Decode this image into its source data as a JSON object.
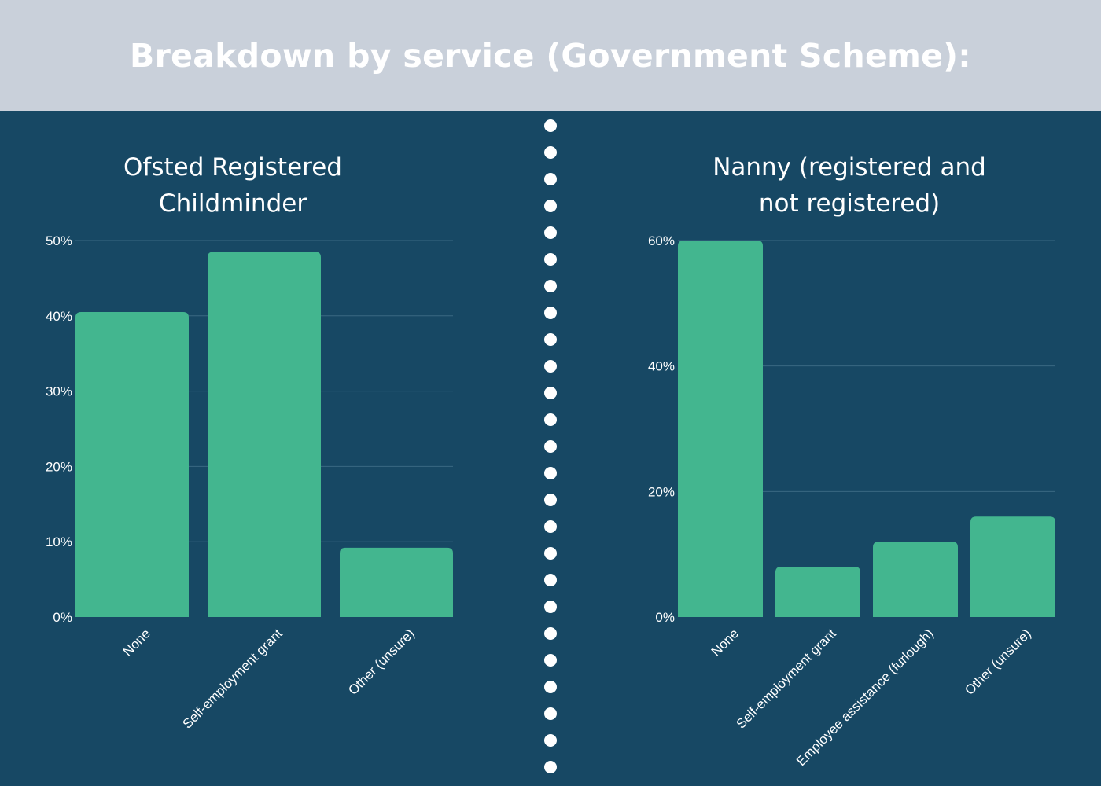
{
  "page": {
    "title": "Breakdown by service (Government Scheme):",
    "colors": {
      "header_bg": "#c9d0da",
      "body_bg": "#174864",
      "bar": "#43b68f",
      "grid": "#3a6882",
      "text": "#ffffff"
    }
  },
  "chart_data": [
    {
      "type": "bar",
      "title_lines": [
        "Ofsted Registered",
        "Childminder"
      ],
      "categories": [
        "None",
        "Self-employment grant",
        "Other (unsure)"
      ],
      "values": [
        40.5,
        48.5,
        9.2
      ],
      "unit": "%",
      "ylim": [
        0,
        50
      ],
      "yticks": [
        0,
        10,
        20,
        30,
        40,
        50
      ],
      "tick_labels": [
        "0%",
        "10%",
        "20%",
        "30%",
        "40%",
        "50%"
      ],
      "grid": true,
      "legend": "none"
    },
    {
      "type": "bar",
      "title_lines": [
        "Nanny (registered and",
        "not registered)"
      ],
      "categories": [
        "None",
        "Self-employment grant",
        "Employee assistance (furlough)",
        "Other (unsure)"
      ],
      "values": [
        60,
        8,
        12,
        16
      ],
      "unit": "%",
      "ylim": [
        0,
        60
      ],
      "yticks": [
        0,
        20,
        40,
        60
      ],
      "tick_labels": [
        "0%",
        "20%",
        "40%",
        "60%"
      ],
      "grid": true,
      "legend": "none"
    }
  ]
}
